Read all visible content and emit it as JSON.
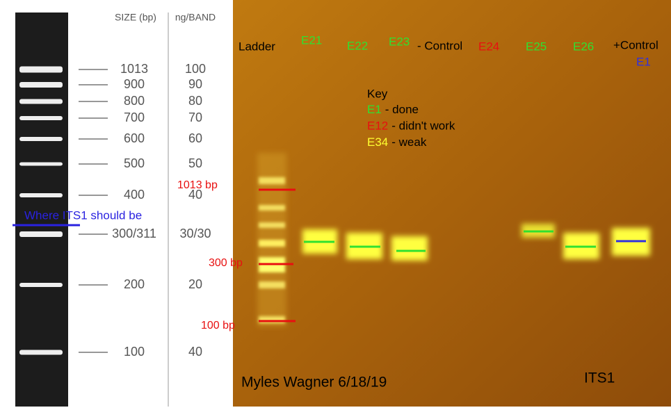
{
  "ladder_chart": {
    "size_header": "SIZE (bp)",
    "ng_header": "ng/BAND",
    "rows": [
      {
        "size": "1013",
        "ng": "100"
      },
      {
        "size": "900",
        "ng": "90"
      },
      {
        "size": "800",
        "ng": "80"
      },
      {
        "size": "700",
        "ng": "70"
      },
      {
        "size": "600",
        "ng": "60"
      },
      {
        "size": "500",
        "ng": "50"
      },
      {
        "size": "400",
        "ng": "40"
      },
      {
        "size": "300/311",
        "ng": "30/30"
      },
      {
        "size": "200",
        "ng": "20"
      },
      {
        "size": "100",
        "ng": "40"
      }
    ],
    "note": "Where ITS1 should be"
  },
  "gel": {
    "lanes": {
      "ladder": "Ladder",
      "e21": "E21",
      "e22": "E22",
      "e23": "E23",
      "e23_note": "- Control",
      "e24": "E24",
      "e25": "E25",
      "e26": "E26",
      "positive": "+Control",
      "positive_sample": "E1"
    },
    "key": {
      "title": "Key",
      "items": [
        {
          "code": "E1",
          "text": "- done"
        },
        {
          "code": "E12",
          "text": "- didn't work"
        },
        {
          "code": "E34",
          "text": "- weak"
        }
      ]
    },
    "markers": [
      "1013 bp",
      "300 bp",
      "100 bp"
    ],
    "author": "Myles Wagner 6/18/19",
    "target": "ITS1"
  }
}
